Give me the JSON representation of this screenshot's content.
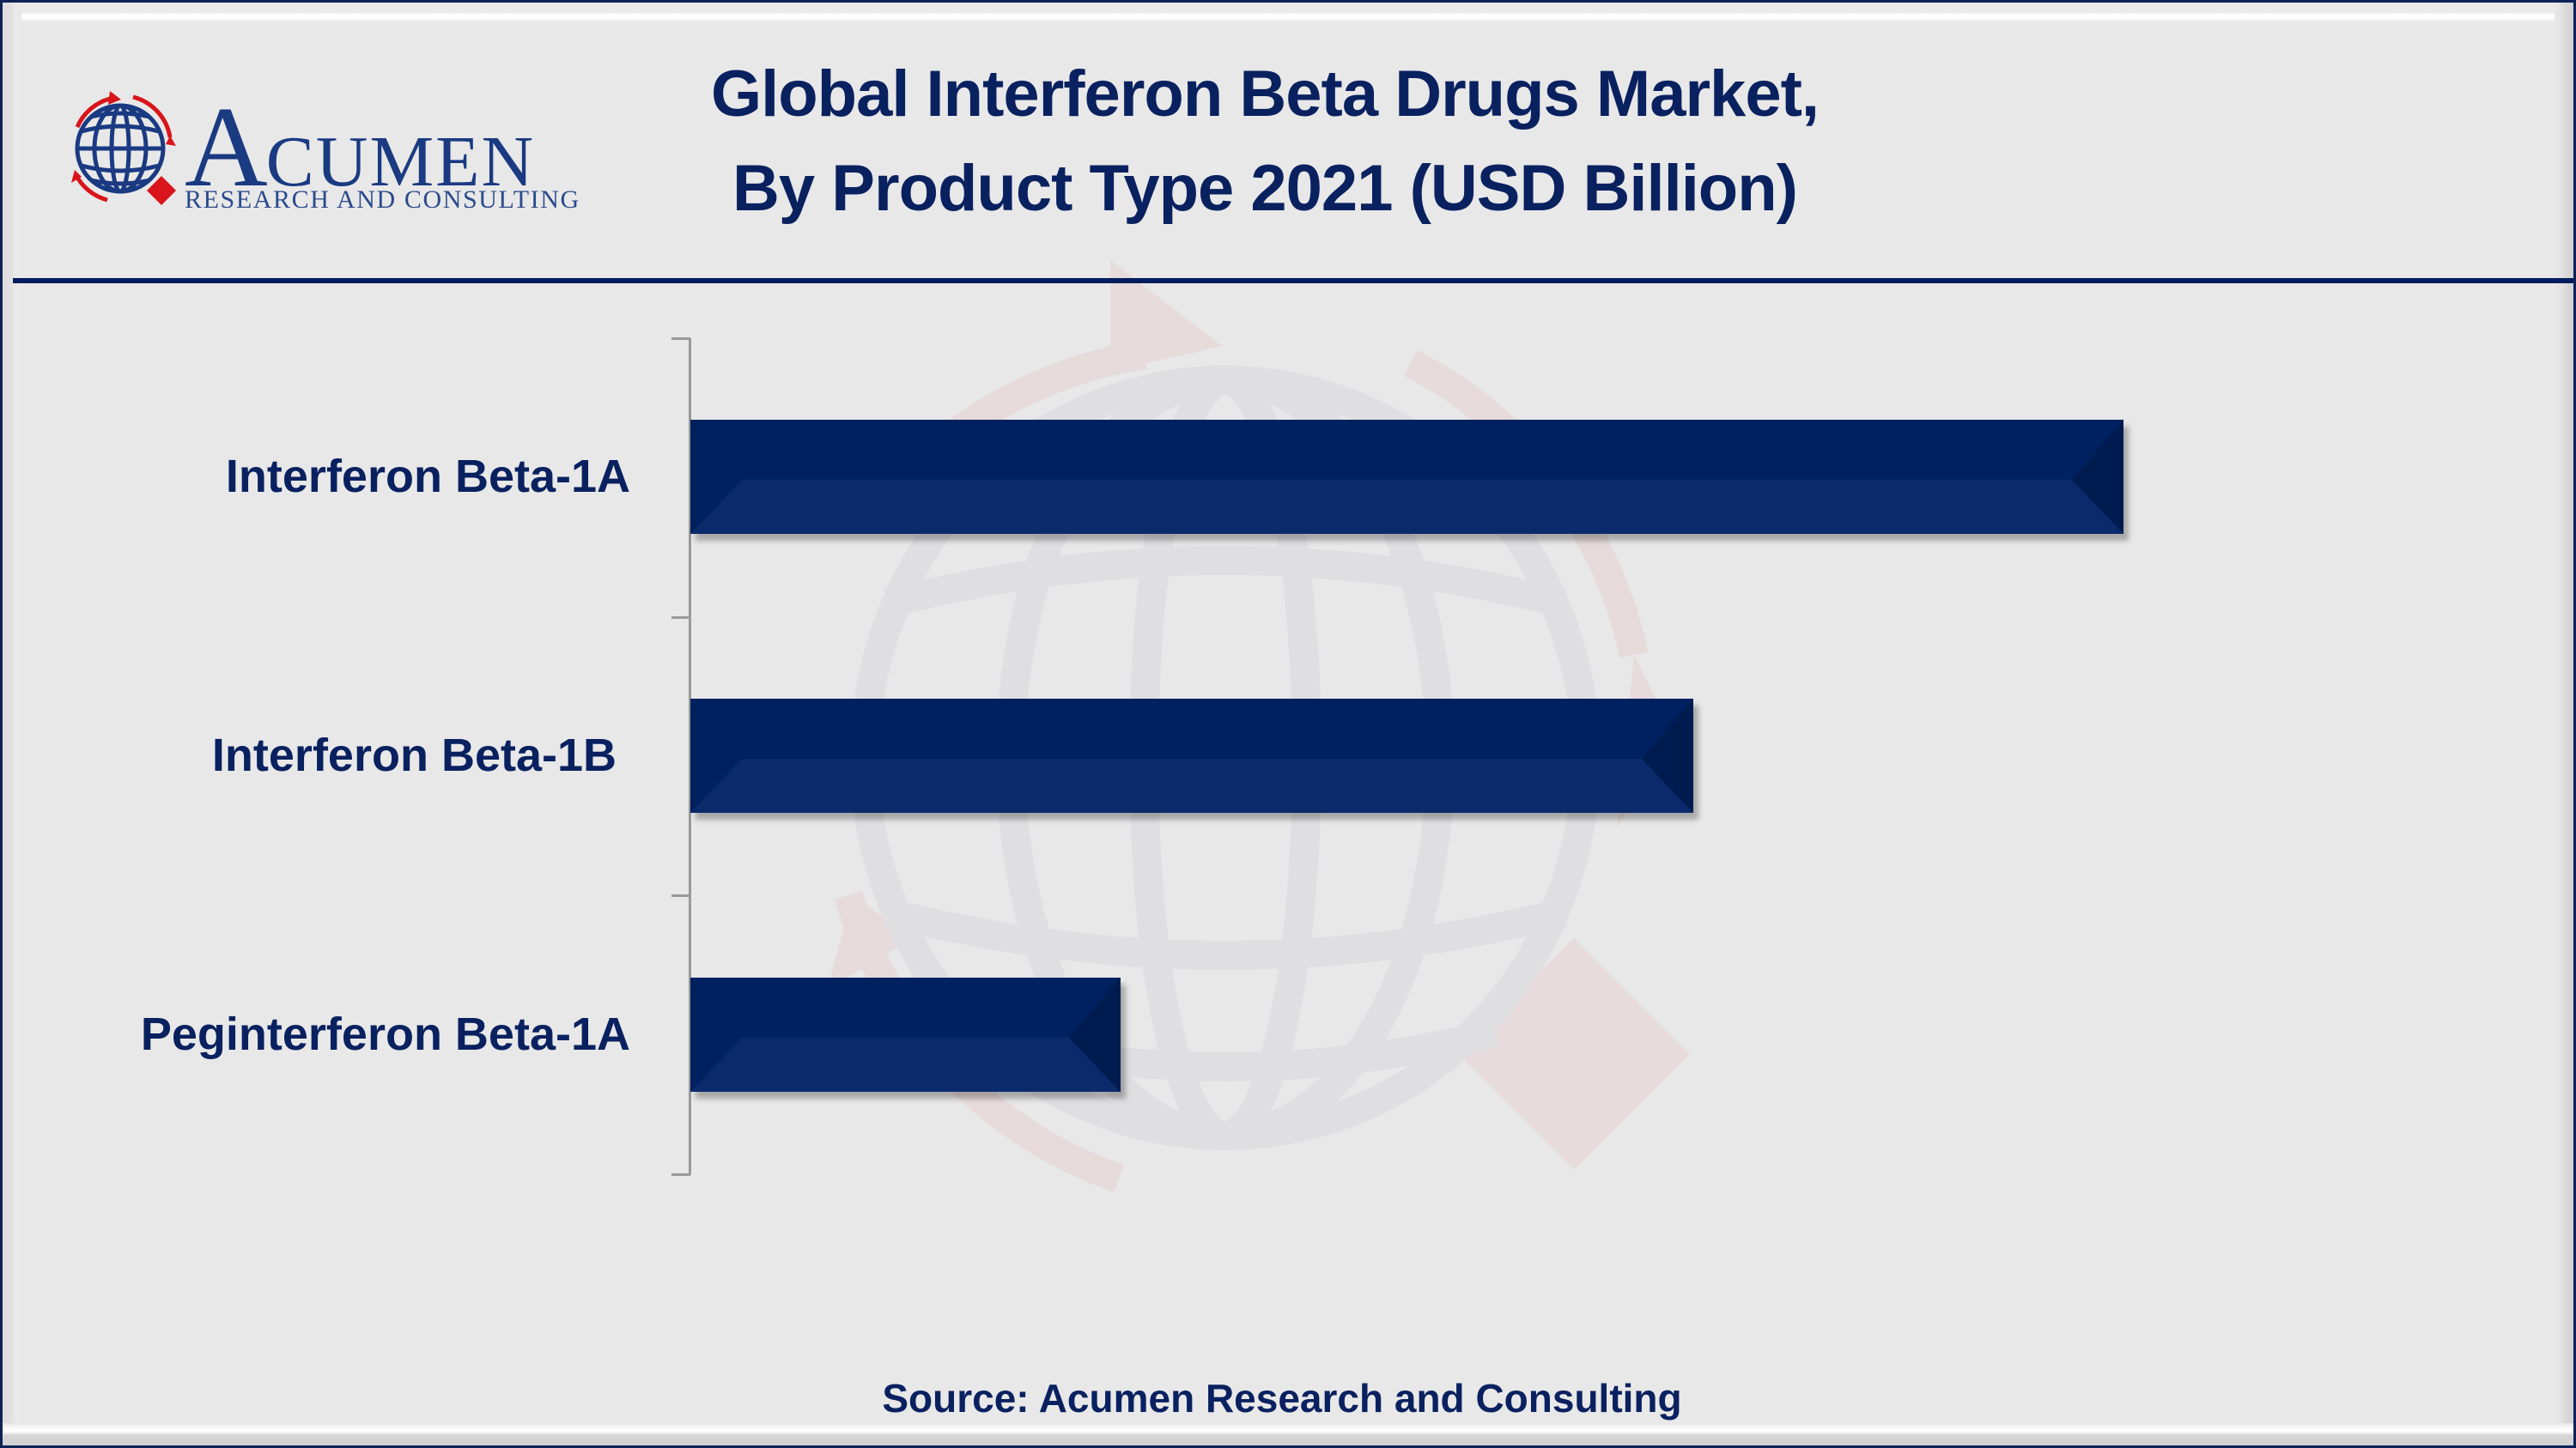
{
  "header": {
    "logo": {
      "word_initial": "A",
      "word_rest": "CUMEN",
      "subtitle": "RESEARCH AND CONSULTING",
      "colors": {
        "navy": "#1a3a82",
        "red": "#d9141b"
      }
    },
    "title_line1": "Global Interferon Beta Drugs Market,",
    "title_line2": "By Product Type 2021 (USD Billion)"
  },
  "footer": {
    "source": "Source: Acumen Research and Consulting"
  },
  "colors": {
    "bar_top": "#00215f",
    "bar_bottom": "#0a2a6b",
    "bar_bevel": "#001b50",
    "text": "#0a2160",
    "axis": "#9a9a9a",
    "background": "#e8e8e8"
  },
  "chart": {
    "labels": [
      "Interferon Beta-1A",
      "Interferon Beta-1B",
      "Peginterferon Beta-1A"
    ]
  },
  "chart_data": {
    "type": "bar",
    "orientation": "horizontal",
    "title": "Global Interferon Beta Drugs Market, By Product Type 2021 (USD Billion)",
    "categories": [
      "Interferon Beta-1A",
      "Interferon Beta-1B",
      "Peginterferon Beta-1A"
    ],
    "values": [
      5.0,
      3.5,
      1.5
    ],
    "value_basis": "relative estimate from bar lengths (no value axis or data labels shown); pixel lengths 1669, 1170, 503",
    "xlabel": "",
    "ylabel": "",
    "unit": "USD Billion",
    "grid": false,
    "legend": null,
    "x_axis_visible": false,
    "source": "Source: Acumen Research and Consulting"
  }
}
